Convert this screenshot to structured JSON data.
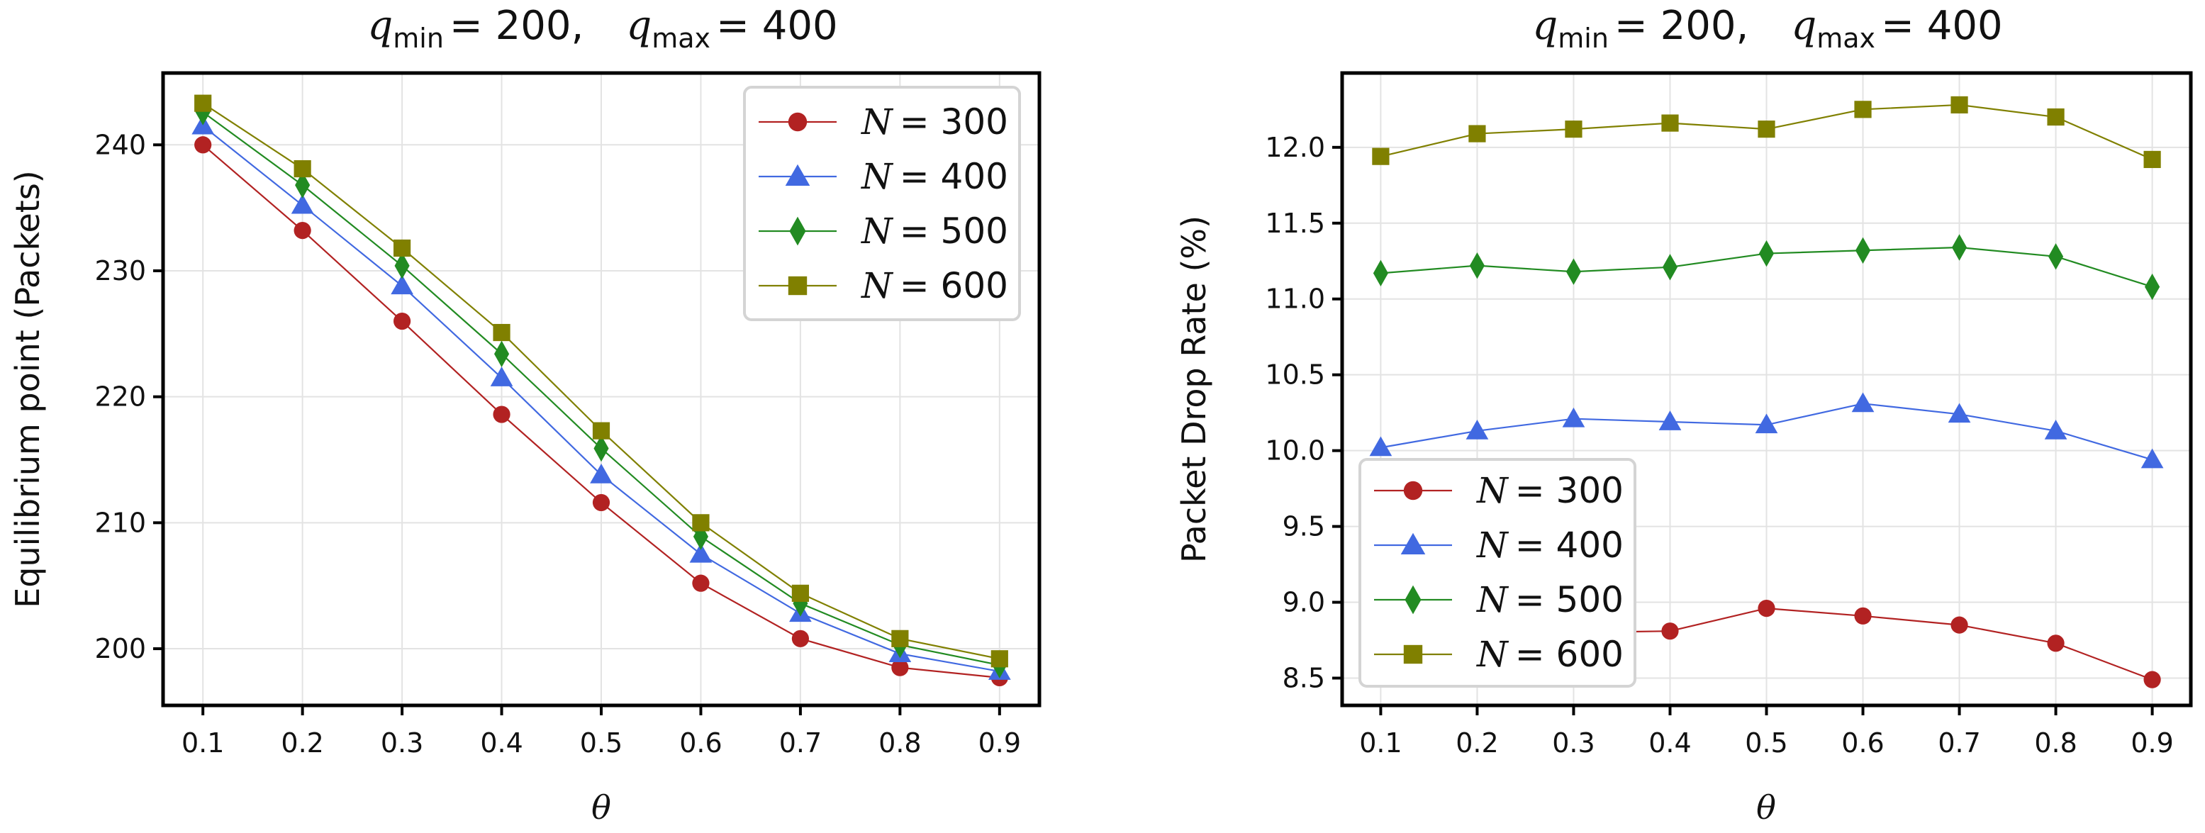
{
  "chart_data": [
    {
      "type": "line",
      "title_parts": {
        "q_symbol": "q",
        "min_sub": "min",
        "min_value": "= 200,",
        "max_sub": "max",
        "max_value": "= 400"
      },
      "xlabel": "θ",
      "ylabel": "Equilibrium point (Packets)",
      "x": [
        0.1,
        0.2,
        0.3,
        0.4,
        0.5,
        0.6,
        0.7,
        0.8,
        0.9
      ],
      "x_ticks": [
        "0.1",
        "0.2",
        "0.3",
        "0.4",
        "0.5",
        "0.6",
        "0.7",
        "0.8",
        "0.9"
      ],
      "xlim": [
        0.06,
        0.94
      ],
      "ylim": [
        195.5,
        245.7
      ],
      "y_ticks": [
        200,
        210,
        220,
        230,
        240
      ],
      "y_tick_labels": [
        "200",
        "210",
        "220",
        "230",
        "240"
      ],
      "grid": true,
      "legend_position": "top-right",
      "series": [
        {
          "name": "N = 300",
          "legend_var": "N",
          "legend_value": "= 300",
          "color": "#b22222",
          "marker": "circle",
          "values": [
            240.0,
            233.2,
            226.0,
            218.6,
            211.6,
            205.2,
            200.8,
            198.5,
            197.7
          ]
        },
        {
          "name": "N = 400",
          "legend_var": "N",
          "legend_value": "= 400",
          "color": "#4169e1",
          "marker": "triangle",
          "values": [
            241.5,
            235.2,
            228.8,
            221.5,
            213.8,
            207.5,
            202.8,
            199.6,
            198.2
          ]
        },
        {
          "name": "N = 500",
          "legend_var": "N",
          "legend_value": "= 500",
          "color": "#228b22",
          "marker": "diamond",
          "values": [
            242.6,
            236.8,
            230.4,
            223.4,
            215.9,
            208.9,
            203.6,
            200.3,
            198.7
          ]
        },
        {
          "name": "N = 600",
          "legend_var": "N",
          "legend_value": "= 600",
          "color": "#808000",
          "marker": "square",
          "values": [
            243.3,
            238.1,
            231.8,
            225.1,
            217.3,
            210.0,
            204.4,
            200.8,
            199.2
          ]
        }
      ]
    },
    {
      "type": "line",
      "title_parts": {
        "q_symbol": "q",
        "min_sub": "min",
        "min_value": "= 200,",
        "max_sub": "max",
        "max_value": "= 400"
      },
      "xlabel": "θ",
      "ylabel": "Packet Drop Rate (%)",
      "x": [
        0.1,
        0.2,
        0.3,
        0.4,
        0.5,
        0.6,
        0.7,
        0.8,
        0.9
      ],
      "x_ticks": [
        "0.1",
        "0.2",
        "0.3",
        "0.4",
        "0.5",
        "0.6",
        "0.7",
        "0.8",
        "0.9"
      ],
      "xlim": [
        0.06,
        0.94
      ],
      "ylim": [
        8.32,
        12.49
      ],
      "y_ticks": [
        8.5,
        9.0,
        9.5,
        10.0,
        10.5,
        11.0,
        11.5,
        12.0
      ],
      "y_tick_labels": [
        "8.5",
        "9.0",
        "9.5",
        "10.0",
        "10.5",
        "11.0",
        "11.5",
        "12.0"
      ],
      "grid": true,
      "legend_position": "bottom-left",
      "series": [
        {
          "name": "N = 300",
          "legend_var": "N",
          "legend_value": "= 300",
          "color": "#b22222",
          "marker": "circle",
          "values": [
            8.65,
            8.7,
            8.8,
            8.81,
            8.96,
            8.91,
            8.85,
            8.73,
            8.49
          ]
        },
        {
          "name": "N = 400",
          "legend_var": "N",
          "legend_value": "= 400",
          "color": "#4169e1",
          "marker": "triangle",
          "values": [
            10.02,
            10.13,
            10.21,
            10.19,
            10.17,
            10.31,
            10.24,
            10.13,
            9.94
          ]
        },
        {
          "name": "N = 500",
          "legend_var": "N",
          "legend_value": "= 500",
          "color": "#228b22",
          "marker": "diamond",
          "values": [
            11.17,
            11.22,
            11.18,
            11.21,
            11.3,
            11.32,
            11.34,
            11.28,
            11.08
          ]
        },
        {
          "name": "N = 600",
          "legend_var": "N",
          "legend_value": "= 600",
          "color": "#808000",
          "marker": "square",
          "values": [
            11.94,
            12.09,
            12.12,
            12.16,
            12.12,
            12.25,
            12.28,
            12.2,
            11.92
          ]
        }
      ]
    }
  ]
}
